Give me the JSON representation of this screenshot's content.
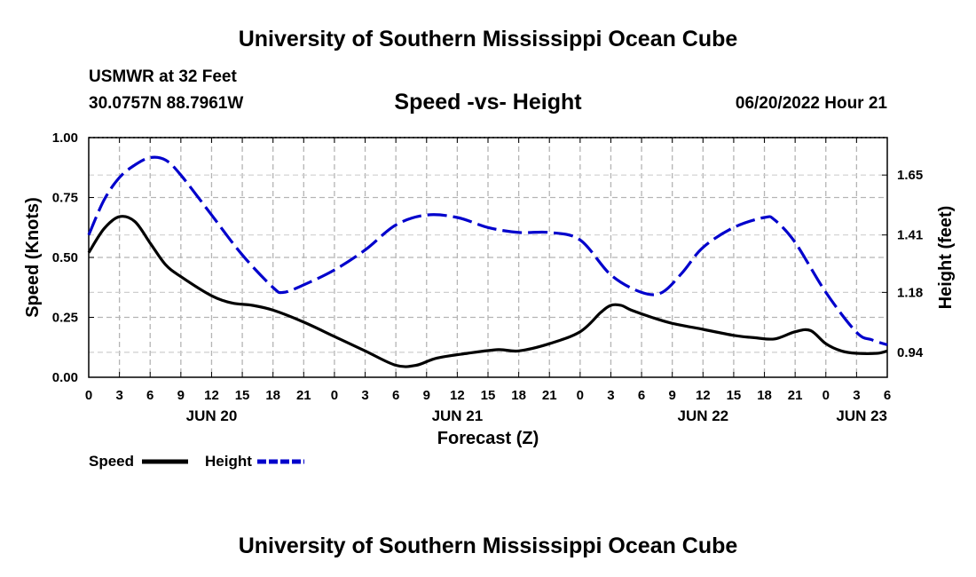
{
  "page": {
    "title_top": "University of Southern Mississippi Ocean Cube",
    "title_bottom": "University of Southern Mississippi Ocean Cube",
    "station": "USMWR at 32 Feet",
    "coords": "30.0757N  88.7961W",
    "timestamp": "06/20/2022 Hour 21"
  },
  "chart_data": {
    "type": "line",
    "title": "Speed -vs- Height",
    "xlabel": "Forecast (Z)",
    "ylabel": "Speed (Knots)",
    "y2label": "Height (feet)",
    "x_hours_range": [
      0,
      78
    ],
    "ylim": [
      0,
      1.0
    ],
    "y2lim": [
      0.84,
      1.8
    ],
    "grid": true,
    "x_ticks": [
      {
        "h": 0,
        "label": "0"
      },
      {
        "h": 3,
        "label": "3"
      },
      {
        "h": 6,
        "label": "6"
      },
      {
        "h": 9,
        "label": "9"
      },
      {
        "h": 12,
        "label": "12"
      },
      {
        "h": 15,
        "label": "15"
      },
      {
        "h": 18,
        "label": "18"
      },
      {
        "h": 21,
        "label": "21"
      },
      {
        "h": 24,
        "label": "0"
      },
      {
        "h": 27,
        "label": "3"
      },
      {
        "h": 30,
        "label": "6"
      },
      {
        "h": 33,
        "label": "9"
      },
      {
        "h": 36,
        "label": "12"
      },
      {
        "h": 39,
        "label": "15"
      },
      {
        "h": 42,
        "label": "18"
      },
      {
        "h": 45,
        "label": "21"
      },
      {
        "h": 48,
        "label": "0"
      },
      {
        "h": 51,
        "label": "3"
      },
      {
        "h": 54,
        "label": "6"
      },
      {
        "h": 57,
        "label": "9"
      },
      {
        "h": 60,
        "label": "12"
      },
      {
        "h": 63,
        "label": "15"
      },
      {
        "h": 66,
        "label": "18"
      },
      {
        "h": 69,
        "label": "21"
      },
      {
        "h": 72,
        "label": "0"
      },
      {
        "h": 75,
        "label": "3"
      },
      {
        "h": 78,
        "label": "6"
      }
    ],
    "date_labels": [
      {
        "h": 12,
        "label": "JUN 20"
      },
      {
        "h": 36,
        "label": "JUN 21"
      },
      {
        "h": 60,
        "label": "JUN 22"
      },
      {
        "h": 78,
        "label": "JUN 23"
      }
    ],
    "y_ticks": [
      {
        "v": 0.0,
        "label": "0.00"
      },
      {
        "v": 0.25,
        "label": "0.25"
      },
      {
        "v": 0.5,
        "label": "0.50"
      },
      {
        "v": 0.75,
        "label": "0.75"
      },
      {
        "v": 1.0,
        "label": "1.00"
      }
    ],
    "y2_ticks": [
      {
        "v": 0.94,
        "label": "0.94"
      },
      {
        "v": 1.18,
        "label": "1.18"
      },
      {
        "v": 1.41,
        "label": "1.41"
      },
      {
        "v": 1.65,
        "label": "1.65"
      }
    ],
    "series": [
      {
        "name": "Speed",
        "axis": "left",
        "color": "#000000",
        "style": "solid",
        "hours": [
          0,
          1.5,
          3,
          4.5,
          6,
          7.5,
          9,
          12,
          14,
          16,
          18,
          21,
          24,
          27,
          30,
          32,
          34,
          37,
          40,
          42,
          45,
          48,
          50,
          51,
          52,
          53,
          55,
          57,
          60,
          63,
          65,
          67,
          69,
          70.5,
          72,
          73.5,
          75,
          77,
          78
        ],
        "values": [
          0.52,
          0.62,
          0.67,
          0.65,
          0.56,
          0.47,
          0.42,
          0.34,
          0.31,
          0.3,
          0.28,
          0.23,
          0.17,
          0.11,
          0.05,
          0.05,
          0.08,
          0.1,
          0.115,
          0.11,
          0.14,
          0.19,
          0.27,
          0.3,
          0.3,
          0.28,
          0.25,
          0.225,
          0.2,
          0.175,
          0.165,
          0.16,
          0.19,
          0.195,
          0.14,
          0.11,
          0.1,
          0.1,
          0.11
        ]
      },
      {
        "name": "Height",
        "axis": "right",
        "color": "#0000cc",
        "style": "dashed",
        "hours": [
          0,
          1.5,
          3,
          4.5,
          6,
          7.5,
          9,
          12,
          15,
          18,
          19,
          21,
          24,
          27,
          30,
          33,
          36,
          39,
          42,
          45,
          48,
          51,
          54,
          56,
          58,
          60,
          63,
          66,
          67,
          69,
          72,
          75,
          76.5,
          78
        ],
        "values": [
          1.41,
          1.55,
          1.64,
          1.69,
          1.72,
          1.71,
          1.65,
          1.49,
          1.33,
          1.2,
          1.18,
          1.21,
          1.27,
          1.35,
          1.45,
          1.49,
          1.48,
          1.44,
          1.42,
          1.42,
          1.39,
          1.25,
          1.18,
          1.18,
          1.26,
          1.36,
          1.44,
          1.48,
          1.47,
          1.38,
          1.18,
          1.02,
          0.99,
          0.97
        ]
      }
    ]
  },
  "legend": [
    {
      "label": "Speed",
      "color": "#000000",
      "style": "solid"
    },
    {
      "label": "Height",
      "color": "#0000cc",
      "style": "dashed"
    }
  ]
}
